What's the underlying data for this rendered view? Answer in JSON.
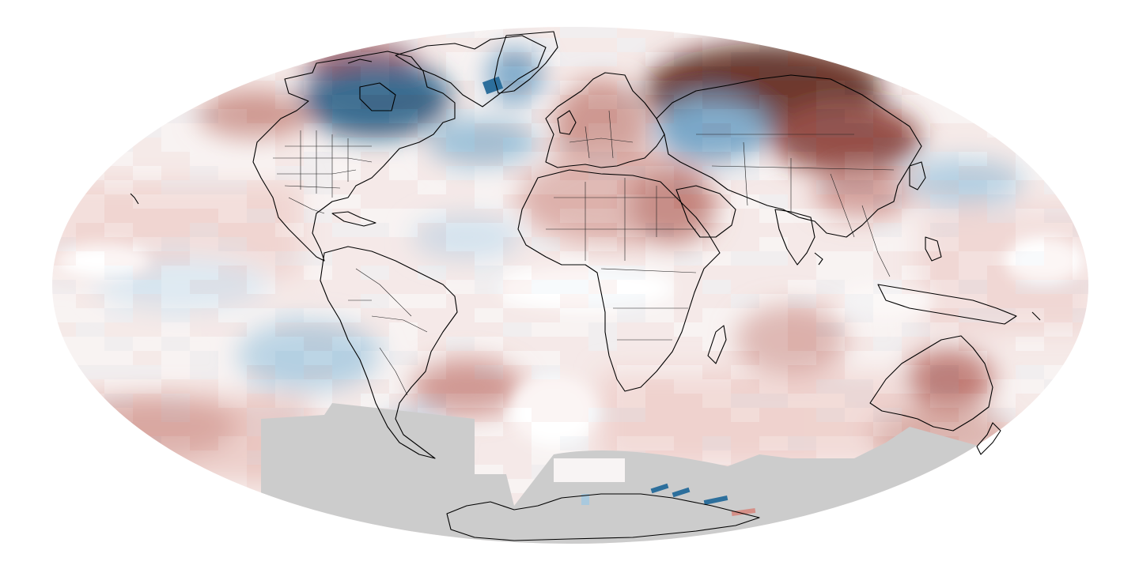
{
  "map": {
    "projection": "mollweide",
    "field": "temperature-anomaly",
    "colors": {
      "background": "#ffffff",
      "nodata": "#cccccc",
      "neutral": "#ffffff",
      "warm_light": "#f1d4d1",
      "warm_mid": "#c87f76",
      "warm_strong": "#8d2f25",
      "warm_extreme": "#4a0d05",
      "cool_light": "#dde9f2",
      "cool_mid": "#8db7d2",
      "cool_strong": "#2d6f9c",
      "cool_extreme": "#0c4a75",
      "coastline": "#000000"
    },
    "anomaly_regions": [
      {
        "name": "siberia-warm",
        "kind": "warm_extreme",
        "intensity": 1.0
      },
      {
        "name": "scandinavia-warm",
        "kind": "warm_mid",
        "intensity": 0.7
      },
      {
        "name": "north-africa-warm",
        "kind": "warm_mid",
        "intensity": 0.6
      },
      {
        "name": "arabia-warm",
        "kind": "warm_mid",
        "intensity": 0.7
      },
      {
        "name": "australia-warm",
        "kind": "warm_strong",
        "intensity": 0.7
      },
      {
        "name": "north-pacific-warm",
        "kind": "warm_mid",
        "intensity": 0.5
      },
      {
        "name": "south-atlantic-warm",
        "kind": "warm_mid",
        "intensity": 0.5
      },
      {
        "name": "indian-ocean-warm",
        "kind": "warm_light",
        "intensity": 0.6
      },
      {
        "name": "canada-cold",
        "kind": "cool_extreme",
        "intensity": 1.0
      },
      {
        "name": "greenland-cold",
        "kind": "cool_strong",
        "intensity": 0.6
      },
      {
        "name": "north-atlantic-cold",
        "kind": "cool_mid",
        "intensity": 0.6
      },
      {
        "name": "central-asia-cold",
        "kind": "cool_mid",
        "intensity": 0.8
      },
      {
        "name": "tropical-pacific-cold",
        "kind": "cool_light",
        "intensity": 0.7
      },
      {
        "name": "south-pacific-cold",
        "kind": "cool_mid",
        "intensity": 0.6
      },
      {
        "name": "equatorial-atlantic-cold",
        "kind": "cool_light",
        "intensity": 0.6
      },
      {
        "name": "north-pacific-east-cold",
        "kind": "cool_light",
        "intensity": 0.6
      }
    ]
  }
}
